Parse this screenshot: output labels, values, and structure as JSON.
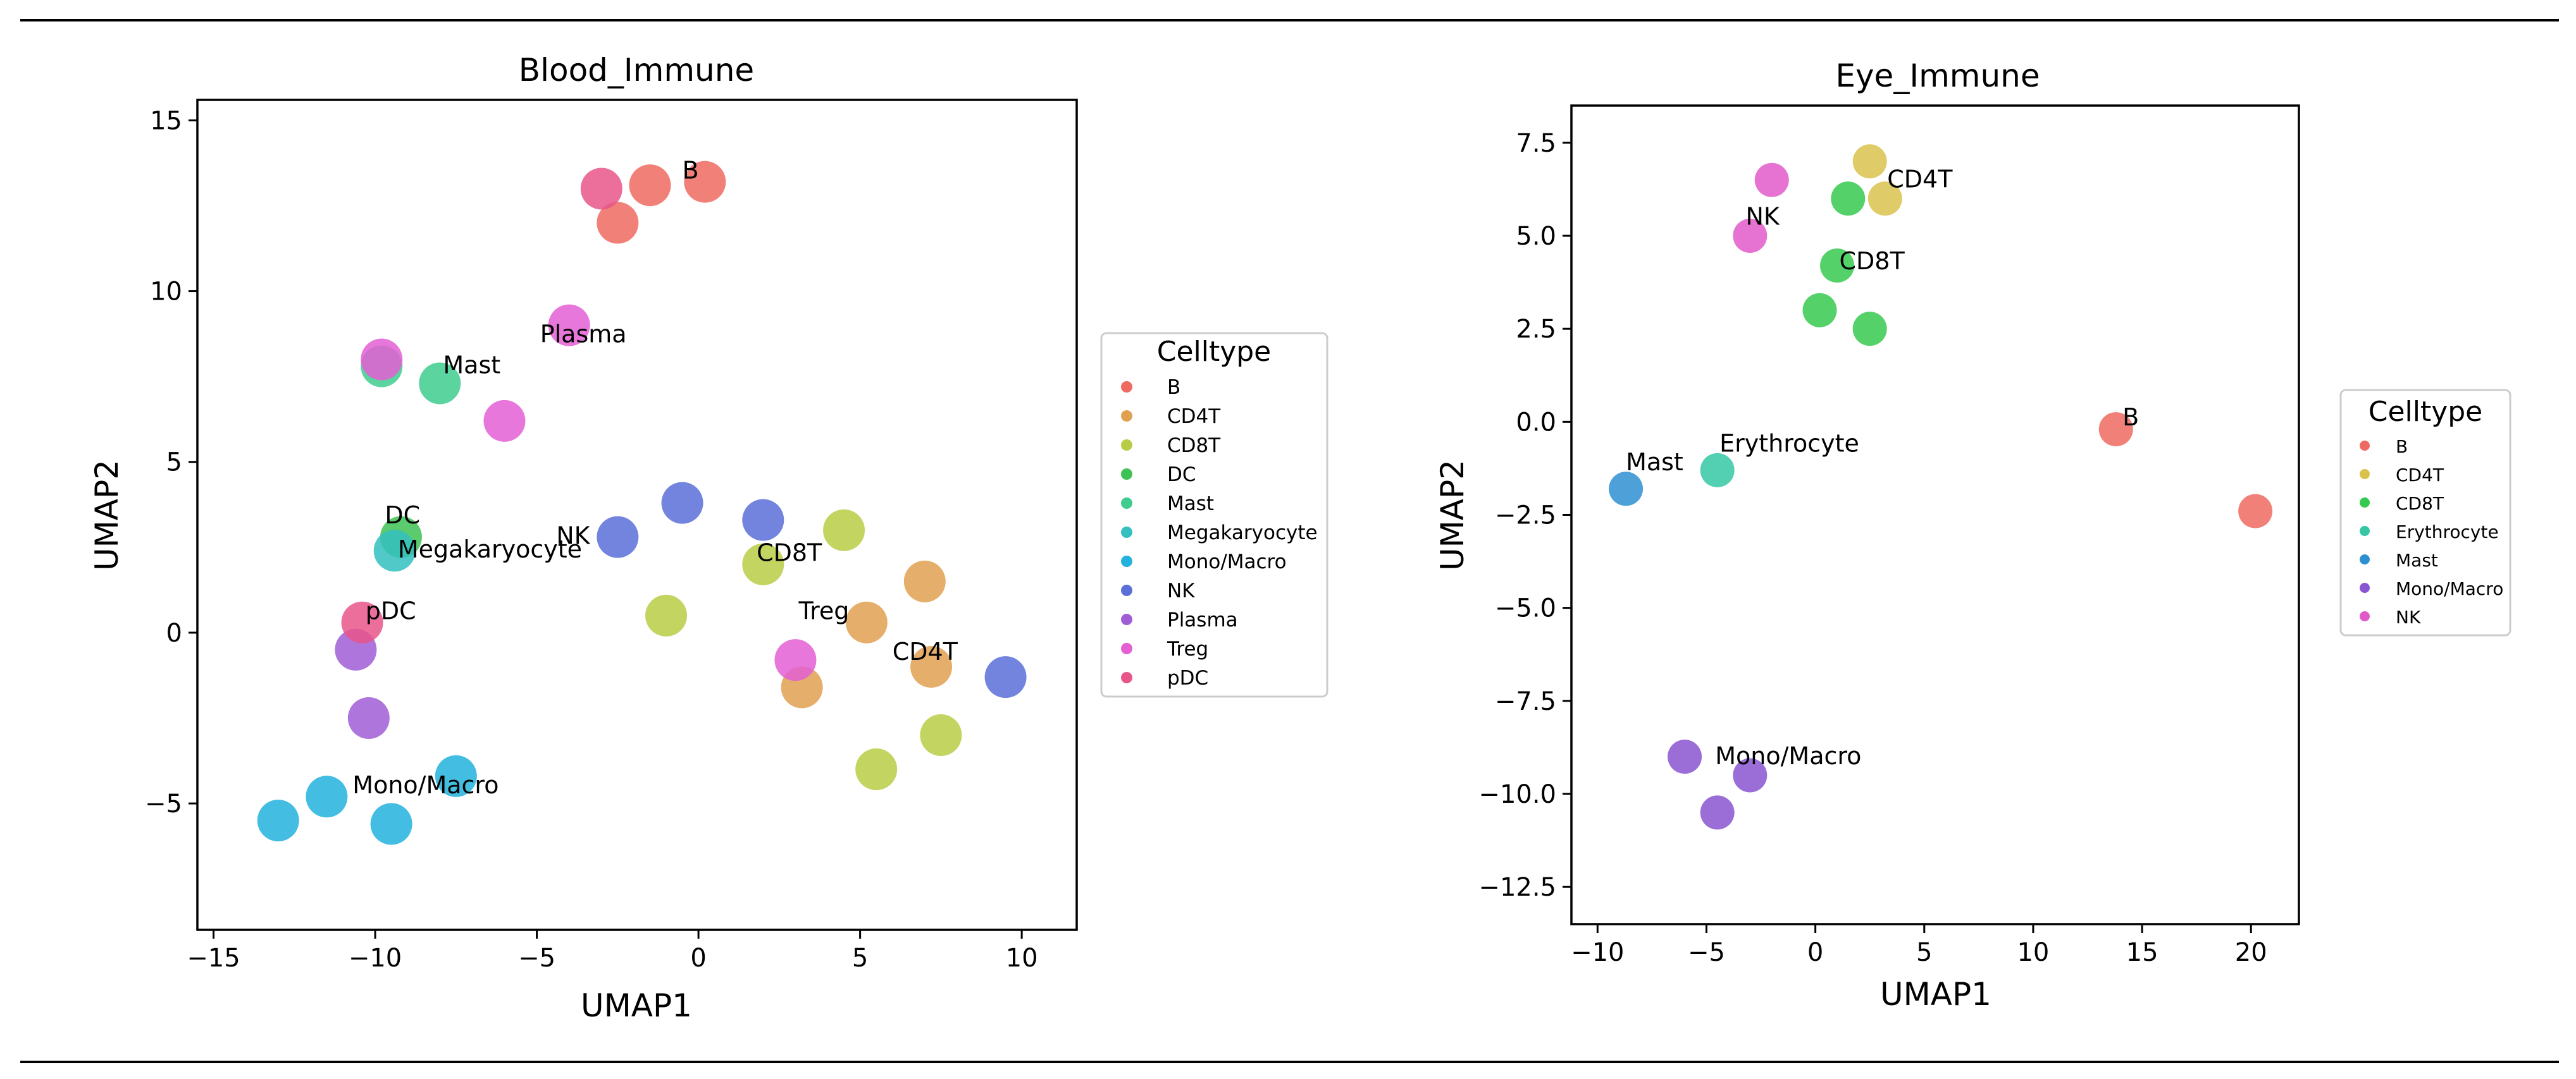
{
  "chart_data": [
    {
      "type": "scatter",
      "title": "Blood_Immune",
      "xlabel": "UMAP1",
      "ylabel": "UMAP2",
      "xlim": [
        -15.5,
        11.7
      ],
      "ylim": [
        -8.7,
        15.6
      ],
      "xticks": [
        -15,
        -10,
        -5,
        0,
        5,
        10
      ],
      "yticks": [
        -5,
        0,
        5,
        10,
        15
      ],
      "xtick_labels": [
        "−15",
        "−10",
        "−5",
        "0",
        "5",
        "10"
      ],
      "ytick_labels": [
        "−5",
        "0",
        "5",
        "10",
        "15"
      ],
      "legend": {
        "title": "Celltype",
        "location": "right",
        "entries": [
          "B",
          "CD4T",
          "CD8T",
          "DC",
          "Mast",
          "Megakaryocyte",
          "Mono/Macro",
          "NK",
          "Plasma",
          "Treg",
          "pDC"
        ]
      },
      "series": [
        {
          "name": "B",
          "color": "#ef6a60",
          "centers": [
            [
              -1.5,
              13.1
            ],
            [
              0.2,
              13.2
            ],
            [
              -2.5,
              12.0
            ]
          ]
        },
        {
          "name": "CD4T",
          "color": "#e1a050",
          "centers": [
            [
              5.2,
              0.3
            ],
            [
              3.2,
              -1.6
            ],
            [
              7.2,
              -1.0
            ],
            [
              7.0,
              1.5
            ]
          ]
        },
        {
          "name": "CD8T",
          "color": "#b8cc45",
          "centers": [
            [
              5.5,
              -4.0
            ],
            [
              2.0,
              2.0
            ],
            [
              4.5,
              3.0
            ],
            [
              7.5,
              -3.0
            ],
            [
              -1.0,
              0.5
            ]
          ]
        },
        {
          "name": "DC",
          "color": "#3ec255",
          "centers": [
            [
              -9.2,
              2.8
            ]
          ]
        },
        {
          "name": "Mast",
          "color": "#3fcc8e",
          "centers": [
            [
              -9.8,
              7.8
            ],
            [
              -8.0,
              7.3
            ]
          ]
        },
        {
          "name": "Megakaryocyte",
          "color": "#34bfc0",
          "centers": [
            [
              -9.4,
              2.4
            ]
          ]
        },
        {
          "name": "Mono/Macro",
          "color": "#22b2dc",
          "centers": [
            [
              -11.5,
              -4.8
            ],
            [
              -9.5,
              -5.6
            ],
            [
              -13.0,
              -5.5
            ],
            [
              -7.5,
              -4.2
            ]
          ]
        },
        {
          "name": "NK",
          "color": "#5b6fd9",
          "centers": [
            [
              -2.5,
              2.8
            ],
            [
              -0.5,
              3.8
            ],
            [
              2.0,
              3.3
            ],
            [
              9.5,
              -1.3
            ]
          ]
        },
        {
          "name": "Plasma",
          "color": "#a05ed6",
          "centers": [
            [
              -10.6,
              -0.5
            ],
            [
              -10.2,
              -2.5
            ]
          ]
        },
        {
          "name": "Treg",
          "color": "#e35fd3",
          "centers": [
            [
              -4.0,
              9.0
            ],
            [
              -6.0,
              6.2
            ],
            [
              -9.8,
              8.0
            ],
            [
              3.0,
              -0.8
            ]
          ]
        },
        {
          "name": "pDC",
          "color": "#e8558a",
          "centers": [
            [
              -10.4,
              0.3
            ],
            [
              -3.0,
              13.0
            ]
          ]
        }
      ],
      "annotations": [
        {
          "text": "B",
          "x": -0.5,
          "y": 13.3
        },
        {
          "text": "Plasma",
          "x": -4.9,
          "y": 8.5
        },
        {
          "text": "Mast",
          "x": -7.9,
          "y": 7.6
        },
        {
          "text": "DC",
          "x": -9.7,
          "y": 3.2
        },
        {
          "text": "Megakaryocyte",
          "x": -9.3,
          "y": 2.2
        },
        {
          "text": "NK",
          "x": -4.4,
          "y": 2.6
        },
        {
          "text": "CD8T",
          "x": 1.8,
          "y": 2.1
        },
        {
          "text": "Treg",
          "x": 3.1,
          "y": 0.4
        },
        {
          "text": "CD4T",
          "x": 6.0,
          "y": -0.8
        },
        {
          "text": "pDC",
          "x": -10.3,
          "y": 0.4
        },
        {
          "text": "Mono/Macro",
          "x": -10.7,
          "y": -4.7
        }
      ]
    },
    {
      "type": "scatter",
      "title": "Eye_Immune",
      "xlabel": "UMAP1",
      "ylabel": "UMAP2",
      "xlim": [
        -11.2,
        22.2
      ],
      "ylim": [
        -13.5,
        8.5
      ],
      "xticks": [
        -10,
        -5,
        0,
        5,
        10,
        15,
        20
      ],
      "yticks": [
        -12.5,
        -10,
        -7.5,
        -5,
        -2.5,
        0,
        2.5,
        5,
        7.5
      ],
      "xtick_labels": [
        "−10",
        "−5",
        "0",
        "5",
        "10",
        "15",
        "20"
      ],
      "ytick_labels": [
        "−12.5",
        "−10.0",
        "−7.5",
        "−5.0",
        "−2.5",
        "0.0",
        "2.5",
        "5.0",
        "7.5"
      ],
      "legend": {
        "title": "Celltype",
        "location": "right",
        "entries": [
          "B",
          "CD4T",
          "CD8T",
          "Erythrocyte",
          "Mast",
          "Mono/Macro",
          "NK"
        ]
      },
      "series": [
        {
          "name": "B",
          "color": "#ef6a60",
          "centers": [
            [
              13.8,
              -0.2
            ],
            [
              20.2,
              -2.4
            ]
          ]
        },
        {
          "name": "CD4T",
          "color": "#d9c24c",
          "centers": [
            [
              3.2,
              6.0
            ],
            [
              2.5,
              7.0
            ]
          ]
        },
        {
          "name": "CD8T",
          "color": "#36c94f",
          "centers": [
            [
              1.0,
              4.2
            ],
            [
              0.2,
              3.0
            ],
            [
              2.5,
              2.5
            ],
            [
              1.5,
              6.0
            ]
          ]
        },
        {
          "name": "Erythrocyte",
          "color": "#35c7a3",
          "centers": [
            [
              -4.5,
              -1.3
            ]
          ]
        },
        {
          "name": "Mast",
          "color": "#2e8fd1",
          "centers": [
            [
              -8.7,
              -1.8
            ]
          ]
        },
        {
          "name": "Mono/Macro",
          "color": "#8a55d0",
          "centers": [
            [
              -4.5,
              -10.5
            ],
            [
              -6.0,
              -9.0
            ],
            [
              -3.0,
              -9.5
            ]
          ]
        },
        {
          "name": "NK",
          "color": "#e25ac9",
          "centers": [
            [
              -3.0,
              5.0
            ],
            [
              -2.0,
              6.5
            ]
          ]
        }
      ],
      "annotations": [
        {
          "text": "CD4T",
          "x": 3.3,
          "y": 6.3
        },
        {
          "text": "NK",
          "x": -3.2,
          "y": 5.3
        },
        {
          "text": "CD8T",
          "x": 1.1,
          "y": 4.1
        },
        {
          "text": "B",
          "x": 14.1,
          "y": -0.1
        },
        {
          "text": "Erythrocyte",
          "x": -4.4,
          "y": -0.8
        },
        {
          "text": "Mast",
          "x": -8.7,
          "y": -1.3
        },
        {
          "text": "Mono/Macro",
          "x": -4.6,
          "y": -9.2
        }
      ]
    }
  ]
}
